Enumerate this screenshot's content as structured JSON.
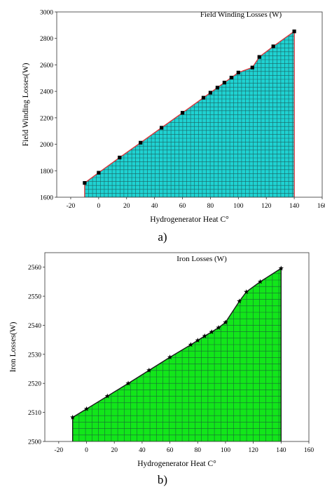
{
  "chart_data": [
    {
      "type": "area",
      "panel_label": "a)",
      "title": "Field Winding Losses (W)",
      "xlabel": "Hydrogenerator Heat C°",
      "ylabel": "Field Winding Losses(W)",
      "xlim": [
        -30,
        160
      ],
      "ylim": [
        1600,
        3000
      ],
      "x_ticks": [
        -20,
        0,
        20,
        40,
        60,
        80,
        100,
        120,
        140,
        160
      ],
      "y_ticks": [
        1600,
        1800,
        2000,
        2200,
        2400,
        2600,
        2800,
        3000
      ],
      "grid": "hatched-fill",
      "legend": "top-right",
      "fill_color": "#1fd2d2",
      "line_color": "#d8363c",
      "marker": "square",
      "series": [
        {
          "x": [
            -10,
            0,
            15,
            30,
            45,
            60,
            75,
            80,
            85,
            90,
            95,
            100,
            110,
            115,
            125,
            140
          ],
          "values": [
            1708,
            1785,
            1900,
            2012,
            2125,
            2238,
            2352,
            2390,
            2428,
            2466,
            2504,
            2542,
            2580,
            2660,
            2740,
            2853
          ]
        }
      ]
    },
    {
      "type": "area",
      "panel_label": "b)",
      "title": "Iron Losses (W)",
      "xlabel": "Hydrogenerator Heat C°",
      "ylabel": "Iron Losses(W)",
      "xlim": [
        -30,
        160
      ],
      "ylim": [
        2500,
        2565
      ],
      "x_ticks": [
        -20,
        0,
        20,
        40,
        60,
        80,
        100,
        120,
        140,
        160
      ],
      "y_ticks": [
        2500,
        2510,
        2520,
        2530,
        2540,
        2550,
        2560
      ],
      "grid": "hatched-fill",
      "legend": "top-right",
      "fill_color": "#12e61a",
      "line_color": "#1a1a1a",
      "marker": "star",
      "series": [
        {
          "x": [
            -10,
            0,
            15,
            30,
            45,
            60,
            75,
            80,
            85,
            90,
            95,
            100,
            110,
            115,
            125,
            140
          ],
          "values": [
            2508.3,
            2511.2,
            2515.6,
            2520.0,
            2524.5,
            2529.0,
            2533.3,
            2534.8,
            2536.3,
            2537.7,
            2539.2,
            2541.0,
            2548.3,
            2551.5,
            2555.0,
            2559.6
          ]
        }
      ]
    }
  ]
}
